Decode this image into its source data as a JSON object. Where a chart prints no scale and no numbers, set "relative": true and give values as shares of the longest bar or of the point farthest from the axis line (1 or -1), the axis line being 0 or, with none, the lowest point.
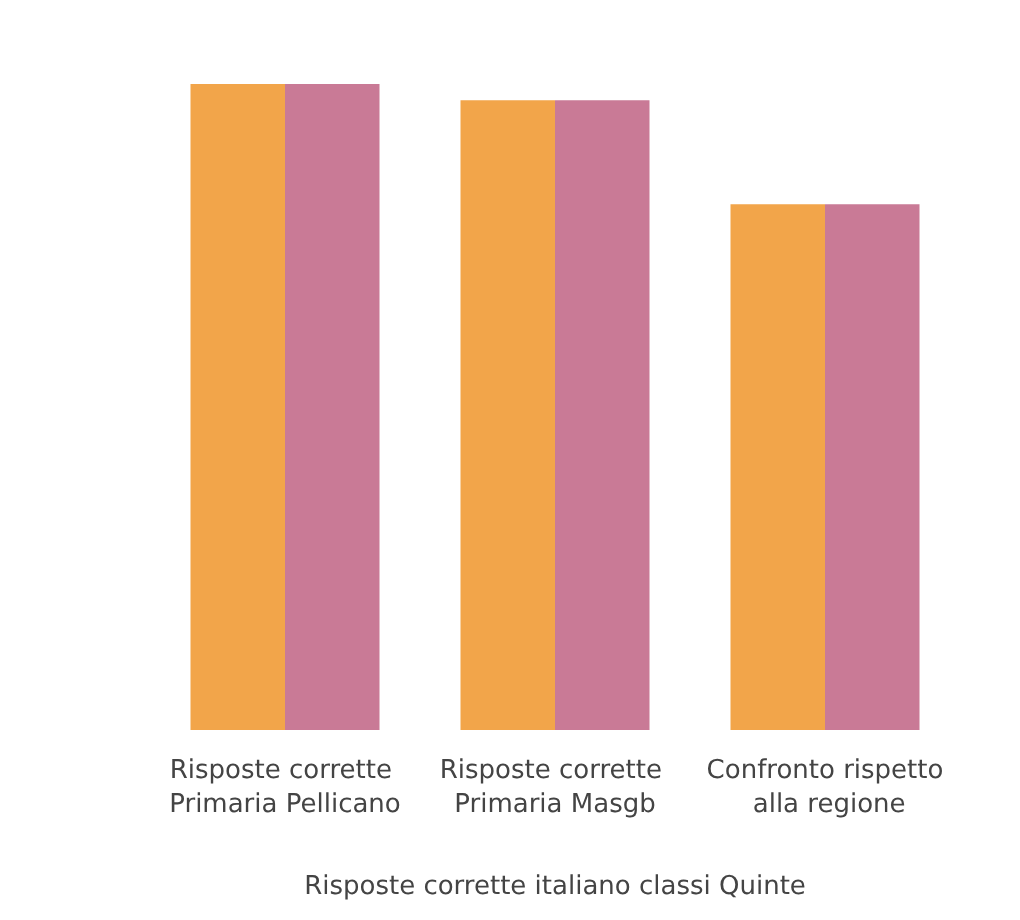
{
  "chart_data": {
    "type": "bar",
    "relative": true,
    "xlabel": "Risposte corrette italiano classi Quinte",
    "categories": [
      "Risposte corrette Primaria Pellicano",
      "Risposte corrette Primaria Masgb",
      "Confronto rispetto alla regione"
    ],
    "series": [
      {
        "color": "#f2a54a",
        "values": [
          1,
          0.975,
          0.814
        ]
      },
      {
        "color": "#c97a96",
        "values": [
          1,
          0.975,
          0.814
        ]
      }
    ]
  }
}
